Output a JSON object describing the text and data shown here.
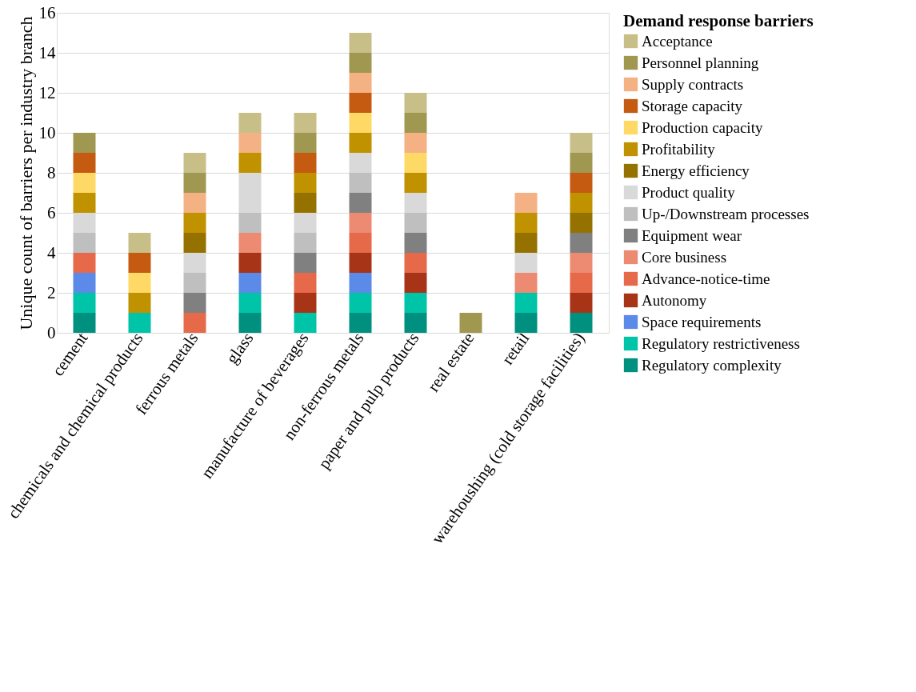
{
  "chart_data": {
    "type": "bar",
    "stacked": true,
    "ylabel": "Unique count of barriers per industry branch",
    "legend_title": "Demand response barriers",
    "legend": "right",
    "grid": "y",
    "ylim": [
      0,
      16
    ],
    "yticks": [
      0,
      2,
      4,
      6,
      8,
      10,
      12,
      14,
      16
    ],
    "categories": [
      "cement",
      "chemicals and chemical products",
      "ferrous metals",
      "glass",
      "manufacture of beverages",
      "non-ferrous metals",
      "paper and pulp products",
      "real estate",
      "retail",
      "warehoushing (cold storage facilities)"
    ],
    "series": [
      {
        "name": "Regulatory complexity",
        "color": "#009080",
        "values": [
          1,
          0,
          0,
          1,
          0,
          1,
          1,
          0,
          1,
          1
        ]
      },
      {
        "name": "Regulatory restrictiveness",
        "color": "#00c4a8",
        "values": [
          1,
          1,
          0,
          1,
          1,
          1,
          1,
          0,
          1,
          0
        ]
      },
      {
        "name": "Space requirements",
        "color": "#5b8ae8",
        "values": [
          1,
          0,
          0,
          1,
          0,
          1,
          0,
          0,
          0,
          0
        ]
      },
      {
        "name": "Autonomy",
        "color": "#a83418",
        "values": [
          0,
          0,
          0,
          1,
          1,
          1,
          1,
          0,
          0,
          1
        ]
      },
      {
        "name": "Advance-notice-time",
        "color": "#e6694a",
        "values": [
          1,
          0,
          1,
          0,
          1,
          1,
          1,
          0,
          0,
          1
        ]
      },
      {
        "name": "Core business",
        "color": "#ec8a72",
        "values": [
          0,
          0,
          0,
          1,
          0,
          1,
          0,
          0,
          1,
          1
        ]
      },
      {
        "name": "Equipment wear",
        "color": "#808080",
        "values": [
          0,
          0,
          1,
          0,
          1,
          1,
          1,
          0,
          0,
          1
        ]
      },
      {
        "name": "Up-/Downstream processes",
        "color": "#bfbfbf",
        "values": [
          1,
          0,
          1,
          1,
          1,
          1,
          1,
          0,
          0,
          0
        ]
      },
      {
        "name": "Product quality",
        "color": "#d9d9d9",
        "values": [
          1,
          0,
          1,
          2,
          1,
          1,
          1,
          0,
          1,
          0
        ]
      },
      {
        "name": "Energy efficiency",
        "color": "#957200",
        "values": [
          0,
          0,
          1,
          0,
          1,
          0,
          0,
          0,
          1,
          1
        ]
      },
      {
        "name": "Profitability",
        "color": "#c09200",
        "values": [
          1,
          1,
          1,
          1,
          1,
          1,
          1,
          0,
          1,
          1
        ]
      },
      {
        "name": "Production capacity",
        "color": "#ffd966",
        "values": [
          1,
          1,
          0,
          0,
          0,
          1,
          1,
          0,
          0,
          0
        ]
      },
      {
        "name": "Storage capacity",
        "color": "#c55a11",
        "values": [
          1,
          1,
          0,
          0,
          1,
          1,
          0,
          0,
          0,
          1
        ]
      },
      {
        "name": "Supply contracts",
        "color": "#f4b183",
        "values": [
          0,
          0,
          1,
          1,
          0,
          1,
          1,
          0,
          1,
          0
        ]
      },
      {
        "name": "Personnel planning",
        "color": "#a09850",
        "values": [
          1,
          0,
          1,
          0,
          1,
          1,
          1,
          1,
          0,
          1
        ]
      },
      {
        "name": "Acceptance",
        "color": "#c8bf88",
        "values": [
          0,
          1,
          1,
          1,
          1,
          1,
          1,
          0,
          0,
          1
        ]
      }
    ]
  }
}
